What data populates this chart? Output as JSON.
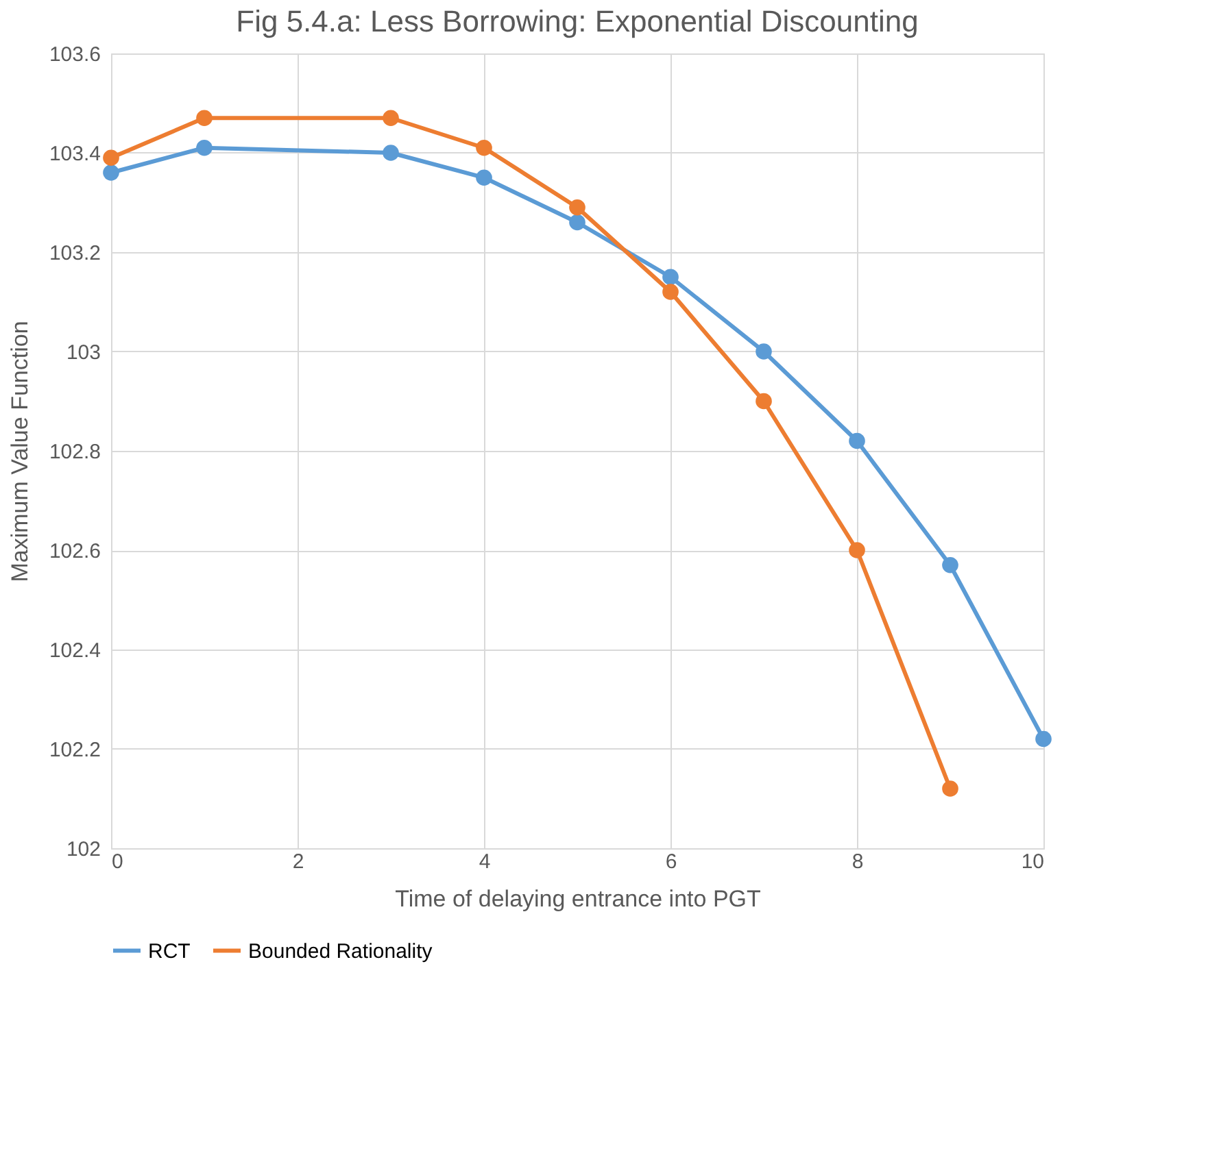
{
  "chart_data": {
    "type": "line",
    "title": "Fig 5.4.a: Less Borrowing: Exponential Discounting",
    "xlabel": "Time of delaying entrance into PGT",
    "ylabel": "Maximum Value Function",
    "series": [
      {
        "name": "RCT",
        "color": "#5b9bd5",
        "x": [
          0,
          1,
          3,
          4,
          5,
          6,
          7,
          8,
          9,
          10
        ],
        "values": [
          103.36,
          103.41,
          103.4,
          103.35,
          103.26,
          103.15,
          103.0,
          102.82,
          102.57,
          102.22
        ]
      },
      {
        "name": "Bounded Rationality",
        "color": "#ed7d31",
        "x": [
          0,
          1,
          3,
          4,
          5,
          6,
          7,
          8,
          9
        ],
        "values": [
          103.39,
          103.47,
          103.47,
          103.41,
          103.29,
          103.12,
          102.9,
          102.6,
          102.12
        ]
      }
    ],
    "xlim": [
      0,
      10
    ],
    "xticks": [
      0,
      2,
      4,
      6,
      8,
      10
    ],
    "ylim": [
      102,
      103.6
    ],
    "yticks": [
      102,
      102.2,
      102.4,
      102.6,
      102.8,
      103,
      103.2,
      103.4,
      103.6
    ],
    "grid": true,
    "legend": "bottom",
    "marker": "circle",
    "line_style": "solid"
  }
}
